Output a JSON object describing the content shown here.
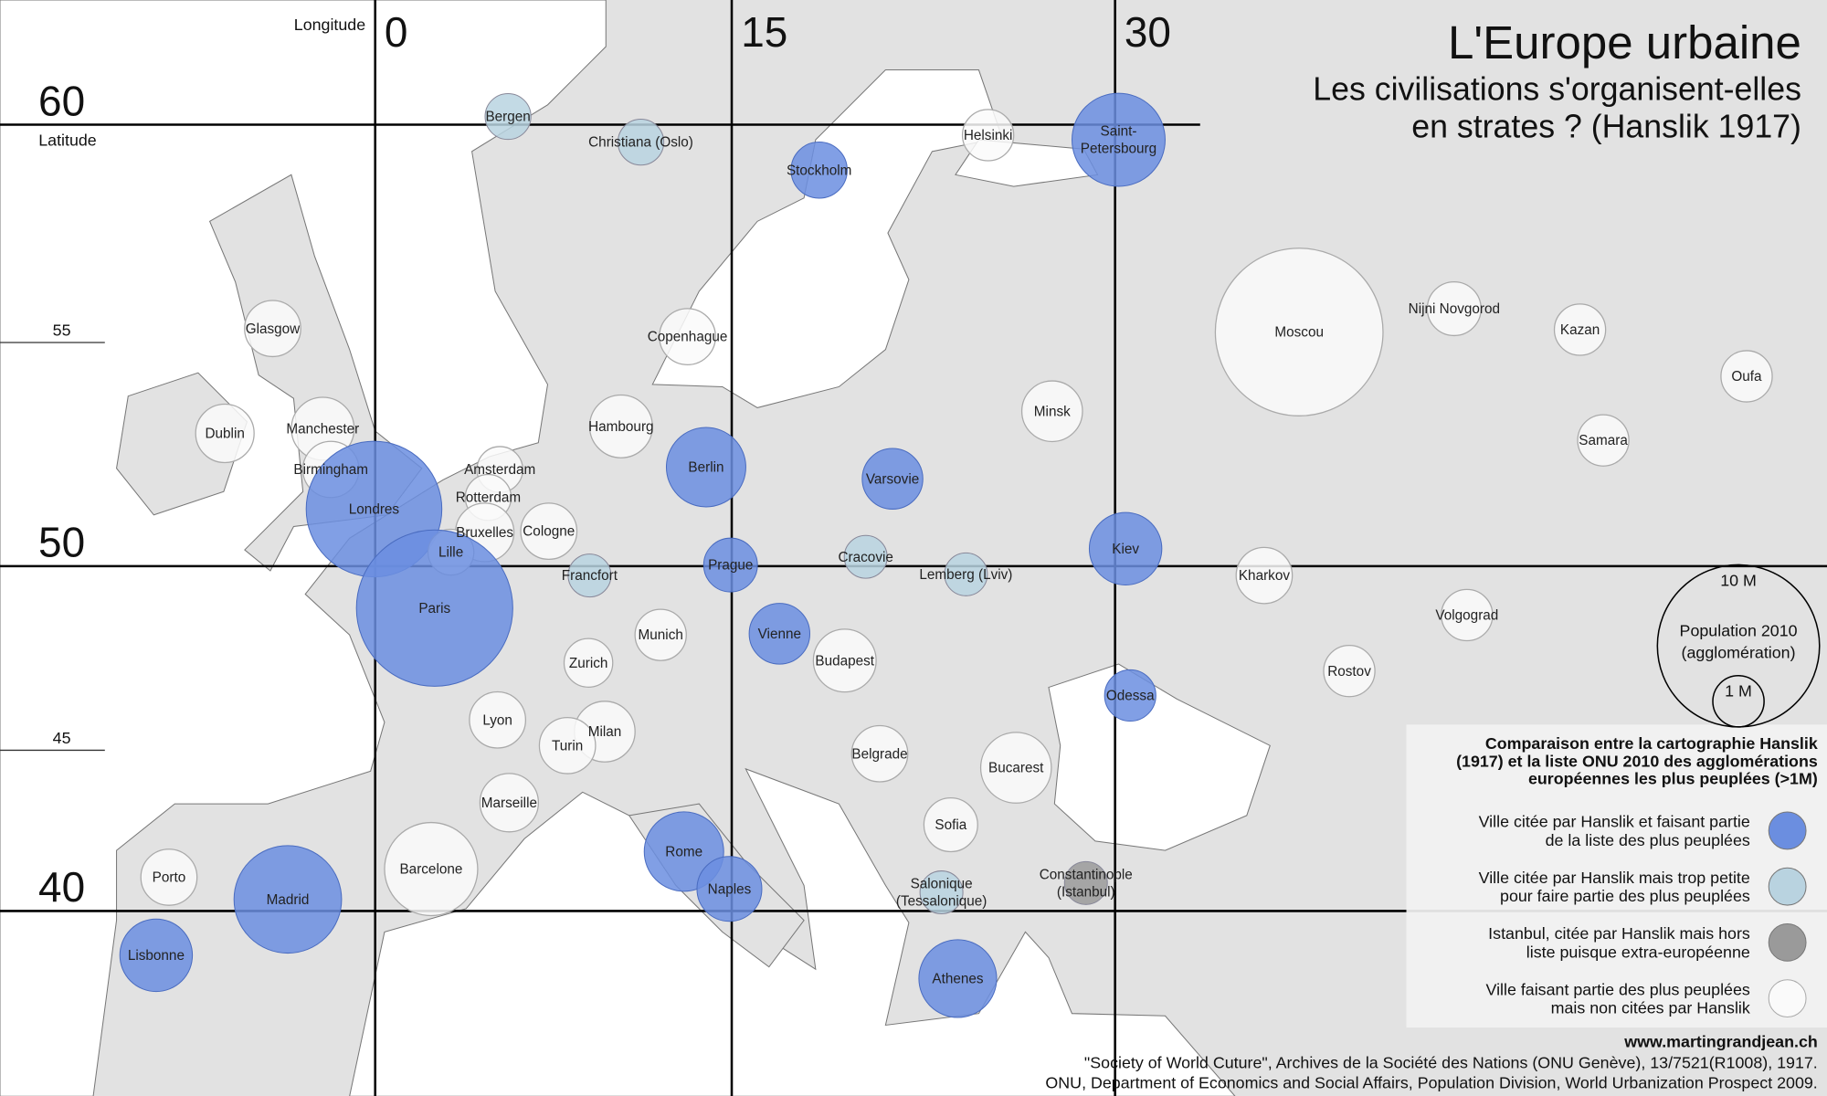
{
  "title": "L'Europe urbaine",
  "subtitle": [
    "Les civilisations s'organisent-elles",
    "en strates ? (Hanslik 1917)"
  ],
  "graticule": {
    "longitude_label": "Longitude",
    "longitudes": [
      0,
      15,
      30
    ],
    "latitude_label": "Latitude",
    "latitudes": [
      60,
      55,
      50,
      45,
      40
    ]
  },
  "size_legend": {
    "items": [
      {
        "value": 10,
        "label": "10 M"
      },
      {
        "value": 1,
        "label": "1 M"
      }
    ],
    "caption": [
      "Population 2010",
      "(agglomération)"
    ]
  },
  "legend": {
    "title": [
      "Comparaison entre la cartographie Hanslik",
      "(1917) et la liste ONU 2010 des agglomérations",
      "européennes les plus peuplées (>1M)"
    ],
    "items": [
      {
        "color": "#6b8ee0",
        "text": [
          "Ville citée par Hanslik et faisant partie",
          "de la liste des plus peuplées"
        ]
      },
      {
        "color": "#b9d3e0",
        "text": [
          "Ville citée par Hanslik mais trop petite",
          "pour faire partie des plus peuplées"
        ]
      },
      {
        "color": "#9a9a9a",
        "text": [
          "Istanbul, citée par Hanslik mais hors",
          "liste puisque extra-européenne"
        ]
      },
      {
        "color": "#fafafa",
        "text": [
          "Ville faisant partie des plus peuplées",
          "mais non citées par Hanslik"
        ]
      }
    ]
  },
  "cities": [
    {
      "label": [
        "Bergen"
      ],
      "category": 1,
      "population": 0.8
    },
    {
      "label": [
        "Christiana (Oslo)"
      ],
      "category": 1,
      "population": 0.8
    },
    {
      "label": [
        "Stockholm"
      ],
      "category": 0,
      "population": 1.2
    },
    {
      "label": [
        "Helsinki"
      ],
      "category": 3,
      "population": 1.0
    },
    {
      "label": [
        "Saint-",
        "Petersbourg"
      ],
      "category": 0,
      "population": 3.3
    },
    {
      "label": [
        "Moscou"
      ],
      "category": 3,
      "population": 10.7
    },
    {
      "label": [
        "Nijni Novgorod"
      ],
      "category": 3,
      "population": 1.1
    },
    {
      "label": [
        "Kazan"
      ],
      "category": 3,
      "population": 1.0
    },
    {
      "label": [
        "Oufa"
      ],
      "category": 3,
      "population": 1.0
    },
    {
      "label": [
        "Samara"
      ],
      "category": 3,
      "population": 1.0
    },
    {
      "label": [
        "Minsk"
      ],
      "category": 3,
      "population": 1.4
    },
    {
      "label": [
        "Copenhague"
      ],
      "category": 3,
      "population": 1.2
    },
    {
      "label": [
        "Glasgow"
      ],
      "category": 3,
      "population": 1.2
    },
    {
      "label": [
        "Dublin"
      ],
      "category": 3,
      "population": 1.3
    },
    {
      "label": [
        "Manchester"
      ],
      "category": 3,
      "population": 1.5
    },
    {
      "label": [
        "Birmingham"
      ],
      "category": 3,
      "population": 1.2
    },
    {
      "label": [
        "Hambourg"
      ],
      "category": 3,
      "population": 1.5
    },
    {
      "label": [
        "Berlin"
      ],
      "category": 0,
      "population": 2.4
    },
    {
      "label": [
        "Varsovie"
      ],
      "category": 0,
      "population": 1.4
    },
    {
      "label": [
        "Londres"
      ],
      "category": 0,
      "population": 7.0
    },
    {
      "label": [
        "Amsterdam"
      ],
      "category": 3,
      "population": 0.8
    },
    {
      "label": [
        "Rotterdam"
      ],
      "category": 3,
      "population": 0.8
    },
    {
      "label": [
        "Bruxelles"
      ],
      "category": 3,
      "population": 1.3
    },
    {
      "label": [
        "Lille"
      ],
      "category": 3,
      "population": 0.8
    },
    {
      "label": [
        "Cologne"
      ],
      "category": 3,
      "population": 1.2
    },
    {
      "label": [
        "Francfort"
      ],
      "category": 1,
      "population": 0.7
    },
    {
      "label": [
        "Prague"
      ],
      "category": 0,
      "population": 1.1
    },
    {
      "label": [
        "Cracovie"
      ],
      "category": 1,
      "population": 0.7
    },
    {
      "label": [
        "Lemberg (Lviv)"
      ],
      "category": 1,
      "population": 0.7
    },
    {
      "label": [
        "Kiev"
      ],
      "category": 0,
      "population": 2.0
    },
    {
      "label": [
        "Kharkov"
      ],
      "category": 3,
      "population": 1.2
    },
    {
      "label": [
        "Paris"
      ],
      "category": 0,
      "population": 9.3
    },
    {
      "label": [
        "Munich"
      ],
      "category": 3,
      "population": 1.0
    },
    {
      "label": [
        "Vienne"
      ],
      "category": 0,
      "population": 1.4
    },
    {
      "label": [
        "Budapest"
      ],
      "category": 3,
      "population": 1.5
    },
    {
      "label": [
        "Zurich"
      ],
      "category": 3,
      "population": 0.9
    },
    {
      "label": [
        "Volgograd"
      ],
      "category": 3,
      "population": 1.0
    },
    {
      "label": [
        "Rostov"
      ],
      "category": 3,
      "population": 1.0
    },
    {
      "label": [
        "Odessa"
      ],
      "category": 0,
      "population": 1.0
    },
    {
      "label": [
        "Lyon"
      ],
      "category": 3,
      "population": 1.2
    },
    {
      "label": [
        "Milan"
      ],
      "category": 3,
      "population": 1.4
    },
    {
      "label": [
        "Turin"
      ],
      "category": 3,
      "population": 1.2
    },
    {
      "label": [
        "Belgrade"
      ],
      "category": 3,
      "population": 1.2
    },
    {
      "label": [
        "Bucarest"
      ],
      "category": 3,
      "population": 1.9
    },
    {
      "label": [
        "Marseille"
      ],
      "category": 3,
      "population": 1.3
    },
    {
      "label": [
        "Sofia"
      ],
      "category": 3,
      "population": 1.1
    },
    {
      "label": [
        "Rome"
      ],
      "category": 0,
      "population": 2.4
    },
    {
      "label": [
        "Naples"
      ],
      "category": 0,
      "population": 1.6
    },
    {
      "label": [
        "Barcelone"
      ],
      "category": 3,
      "population": 3.3
    },
    {
      "label": [
        "Porto"
      ],
      "category": 3,
      "population": 1.2
    },
    {
      "label": [
        "Madrid"
      ],
      "category": 0,
      "population": 4.4
    },
    {
      "label": [
        "Salonique",
        "(Tessalonique)"
      ],
      "category": 1,
      "population": 0.7
    },
    {
      "label": [
        "Constantinople",
        "(Istanbul)"
      ],
      "category": 2,
      "population": 0.7
    },
    {
      "label": [
        "Lisbonne"
      ],
      "category": 0,
      "population": 2.0
    },
    {
      "label": [
        "Athenes"
      ],
      "category": 0,
      "population": 2.3
    }
  ],
  "credits": {
    "site": "www.martingrandjean.ch",
    "sources": [
      "\"Society of World Cuture\", Archives de la Société des Nations (ONU Genève), 13/7521(R1008), 1917.",
      "ONU, Department of Economics and Social Affairs, Population Division, World Urbanization Prospect 2009."
    ]
  }
}
